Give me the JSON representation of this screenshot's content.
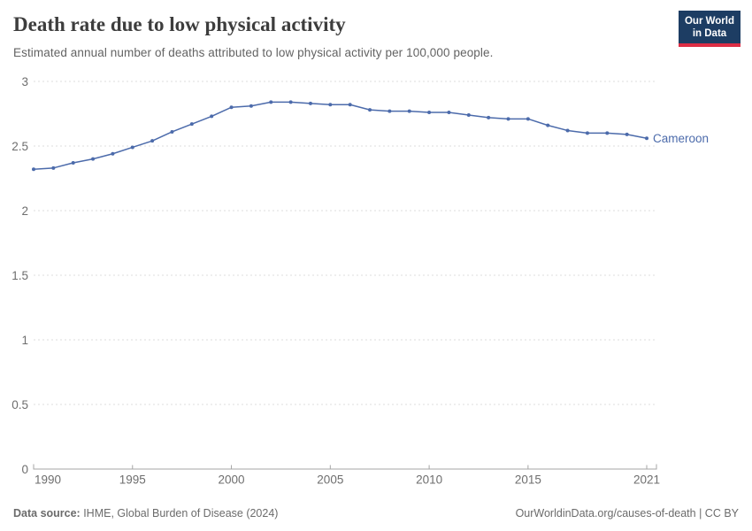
{
  "header": {
    "title": "Death rate due to low physical activity",
    "subtitle": "Estimated annual number of deaths attributed to low physical activity per 100,000 people.",
    "logo": {
      "line1": "Our World",
      "line2": "in Data",
      "bg_color": "#1d3d63",
      "accent_color": "#dc2e45"
    }
  },
  "chart_data": {
    "type": "line",
    "title": "Death rate due to low physical activity",
    "subtitle": "Estimated annual number of deaths attributed to low physical activity per 100,000 people.",
    "xlabel": "",
    "ylabel": "",
    "xlim": [
      1990,
      2021
    ],
    "ylim": [
      0,
      3
    ],
    "x_ticks": [
      1990,
      1995,
      2000,
      2005,
      2010,
      2015,
      2021
    ],
    "y_ticks": [
      0,
      0.5,
      1,
      1.5,
      2,
      2.5,
      3
    ],
    "grid": "horizontal-dashed",
    "legend_position": "end-of-line-label",
    "series": [
      {
        "name": "Cameroon",
        "color": "#4c6bab",
        "x": [
          1990,
          1991,
          1992,
          1993,
          1994,
          1995,
          1996,
          1997,
          1998,
          1999,
          2000,
          2001,
          2002,
          2003,
          2004,
          2005,
          2006,
          2007,
          2008,
          2009,
          2010,
          2011,
          2012,
          2013,
          2014,
          2015,
          2016,
          2017,
          2018,
          2019,
          2020,
          2021
        ],
        "values": [
          2.32,
          2.33,
          2.37,
          2.4,
          2.44,
          2.49,
          2.54,
          2.61,
          2.67,
          2.73,
          2.8,
          2.81,
          2.84,
          2.84,
          2.83,
          2.82,
          2.82,
          2.78,
          2.77,
          2.77,
          2.76,
          2.76,
          2.74,
          2.72,
          2.71,
          2.71,
          2.66,
          2.62,
          2.6,
          2.6,
          2.59,
          2.56
        ]
      }
    ],
    "colors": {
      "gridline": "#dcdcdc",
      "axis": "#a5a5a5",
      "tick_label": "#6e6e6e"
    }
  },
  "footer": {
    "source_label": "Data source:",
    "source_text": " IHME, Global Burden of Disease (2024)",
    "license_text": "OurWorldinData.org/causes-of-death | CC BY"
  }
}
